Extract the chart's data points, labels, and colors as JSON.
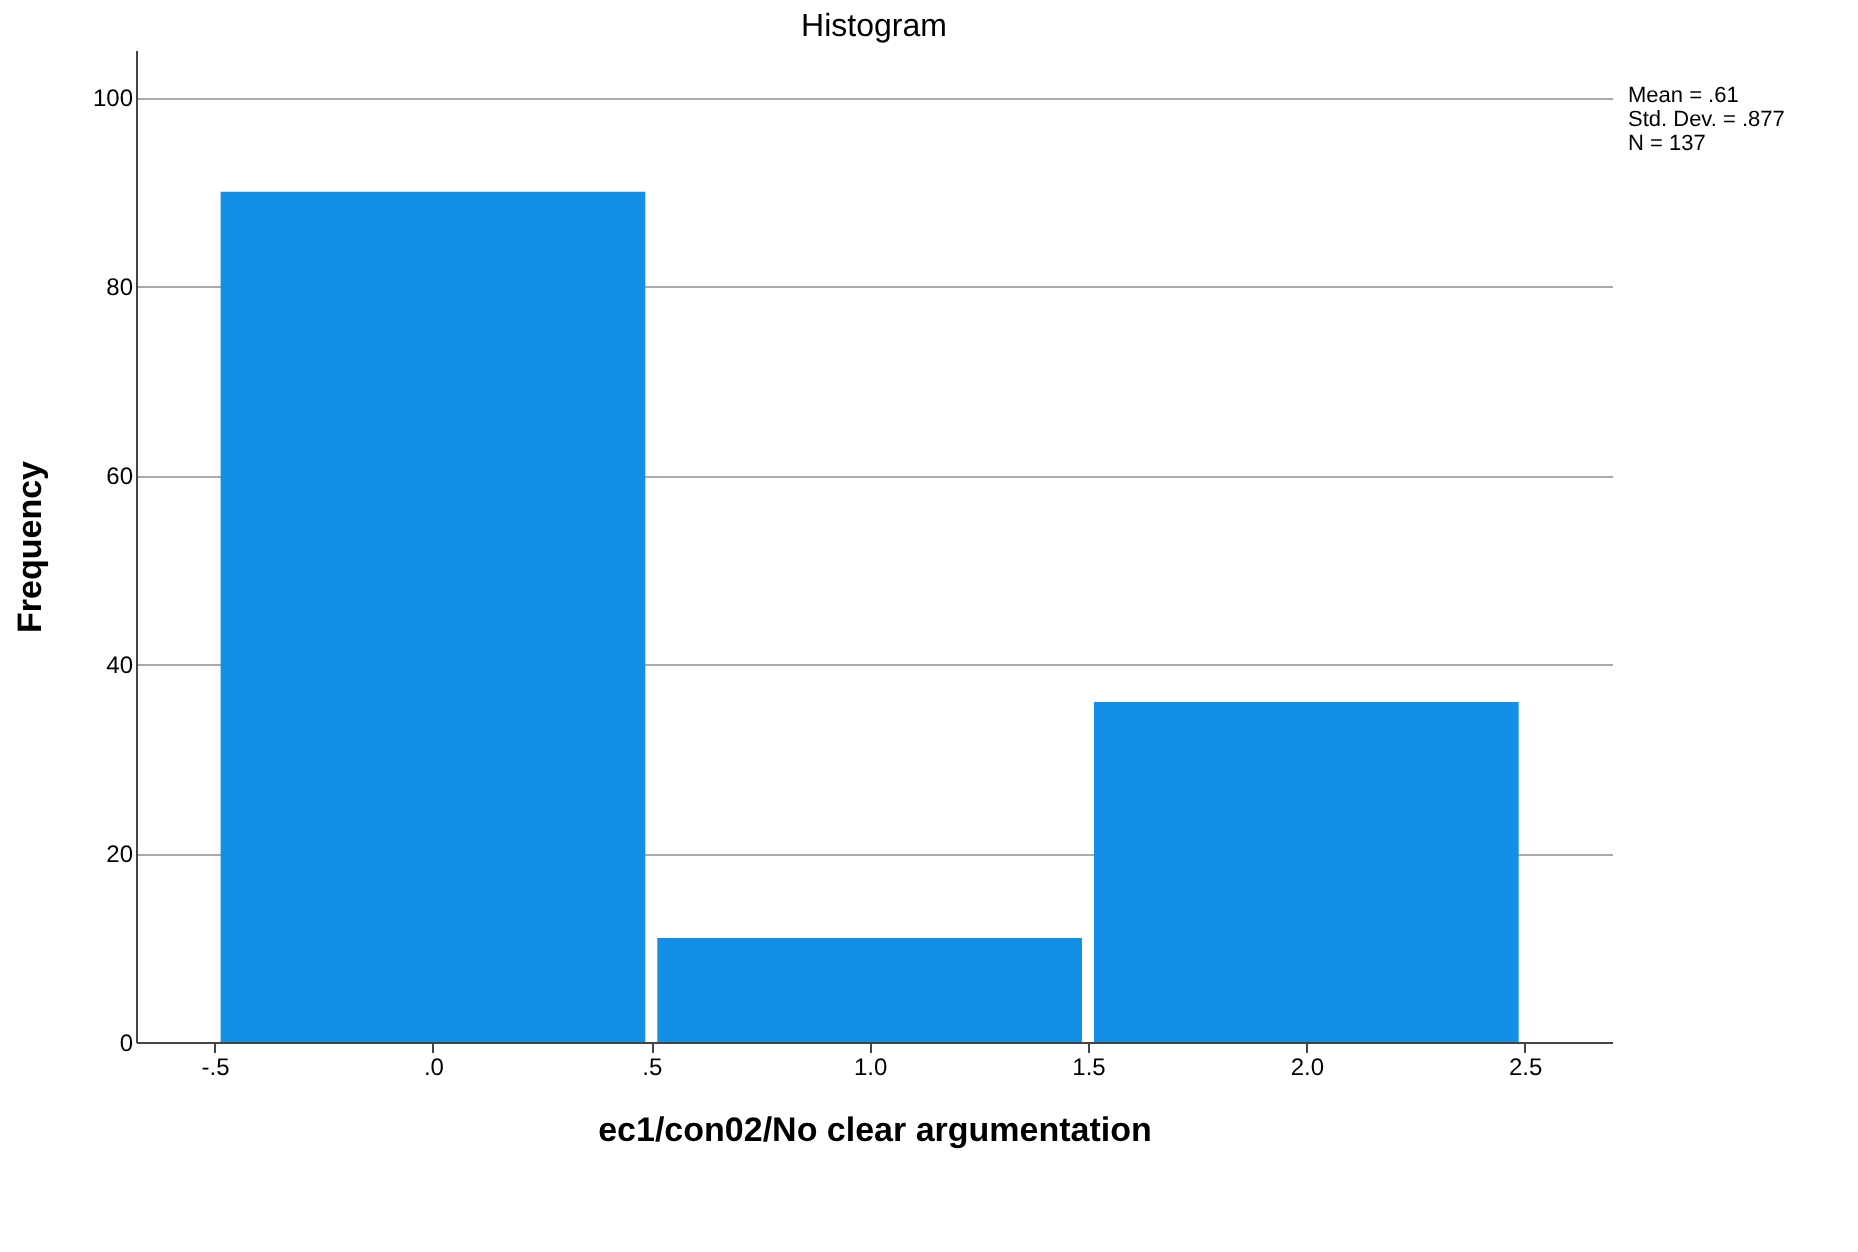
{
  "chart_data": {
    "type": "histogram",
    "title": "Histogram",
    "xlabel": "ec1/con02/No clear argumentation",
    "ylabel": "Frequency",
    "bins": [
      -0.5,
      0.5,
      1.5,
      2.5
    ],
    "values": [
      90,
      11,
      36
    ],
    "color": "#1390e6",
    "xlim": [
      -0.68,
      2.7
    ],
    "xticks": [
      {
        "value": -0.5,
        "label": "-.5"
      },
      {
        "value": 0,
        "label": ".0"
      },
      {
        "value": 0.5,
        "label": ".5"
      },
      {
        "value": 1,
        "label": "1.0"
      },
      {
        "value": 1.5,
        "label": "1.5"
      },
      {
        "value": 2,
        "label": "2.0"
      },
      {
        "value": 2.5,
        "label": "2.5"
      }
    ],
    "ylim": [
      0,
      105
    ],
    "yticks": [
      0,
      20,
      40,
      60,
      80,
      100
    ],
    "grid": "y",
    "annotations": [
      "Mean = .61",
      "Std. Dev. = .877",
      "N = 137"
    ]
  }
}
